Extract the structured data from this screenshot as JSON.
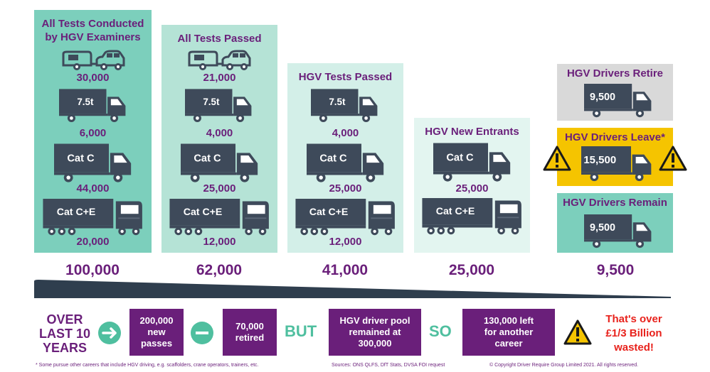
{
  "columns": [
    {
      "title": "All Tests Conducted by HGV Examiners",
      "values": {
        "car": "30,000",
        "t75": "6,000",
        "catc": "44,000",
        "catce": "20,000"
      },
      "total": "100,000",
      "color": "#7ccfbc"
    },
    {
      "title": "All Tests Passed",
      "values": {
        "car": "21,000",
        "t75": "4,000",
        "catc": "25,000",
        "catce": "12,000"
      },
      "total": "62,000",
      "color": "#b5e3d6"
    },
    {
      "title": "HGV Tests Passed",
      "values": {
        "t75": "4,000",
        "catc": "25,000",
        "catce": "12,000"
      },
      "total": "41,000",
      "color": "#d3efe8"
    },
    {
      "title": "HGV New Entrants",
      "values": {
        "catc": "25,000"
      },
      "total": "25,000",
      "color": "#e3f5f0"
    }
  ],
  "truck_labels": {
    "t75": "7.5t",
    "catc": "Cat C",
    "catce": "Cat C+E"
  },
  "drivers": {
    "retire": {
      "title": "HGV Drivers Retire",
      "value": "9,500",
      "color": "#d9d9d9"
    },
    "leave": {
      "title": "HGV Drivers Leave*",
      "value": "15,500",
      "color": "#f5c400"
    },
    "remain": {
      "title": "HGV Drivers Remain",
      "value": "9,500",
      "color": "#7ccfbc"
    },
    "total": "9,500"
  },
  "bottom": {
    "over_line1": "OVER",
    "over_line2": "LAST 10",
    "over_line3": "YEARS",
    "box1_line1": "200,000",
    "box1_line2": "new",
    "box1_line3": "passes",
    "box2_line1": "70,000",
    "box2_line2": "retired",
    "but": "BUT",
    "box3_line1": "HGV driver pool",
    "box3_line2": "remained at",
    "box3_line3": "300,000",
    "so": "SO",
    "box4_line1": "130,000 left",
    "box4_line2": "for another",
    "box4_line3": "career",
    "wasted_line1": "That's over",
    "wasted_line2": "£1/3 Billion",
    "wasted_line3": "wasted!"
  },
  "footnotes": {
    "note": "* Some pursue other careers that include HGV driving, e.g. scaffolders, crane operators, trainers, etc.",
    "sources": "Sources: ONS QLFS, DfT Stats, DVSA FOI request",
    "copyright": "© Copyright Driver Require Group Limited 2021. All rights reserved."
  },
  "colors": {
    "purple": "#6a1f7a",
    "truck": "#3e4a5a",
    "green": "#4fbf9f",
    "red": "#e8221c"
  }
}
